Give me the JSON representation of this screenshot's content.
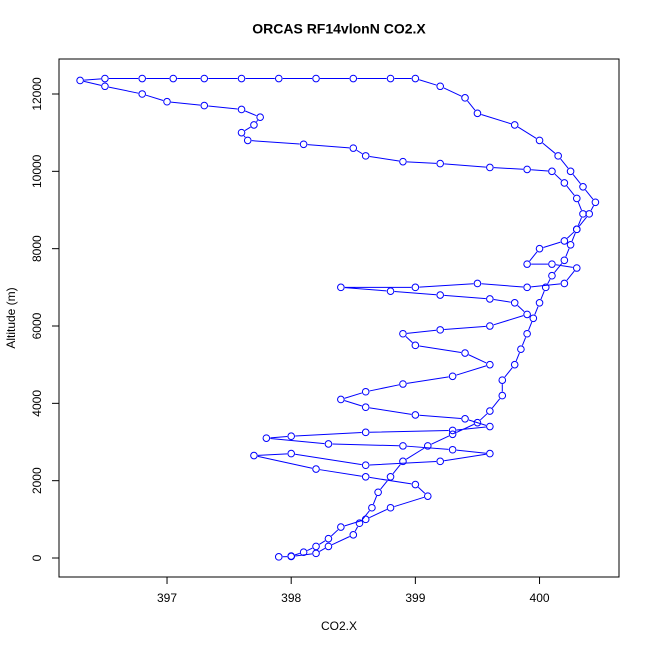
{
  "chart_data": {
    "type": "line",
    "markers": "circle",
    "title": "ORCAS RF14vlonN CO2.X",
    "x_label": "CO2.X",
    "y_label": "Altitude (m)",
    "color": "#0000ff",
    "xlim": [
      396.13,
      400.64
    ],
    "ylim": [
      -491,
      12905
    ],
    "xticks": [
      397,
      398,
      399,
      400
    ],
    "yticks": [
      0,
      2000,
      4000,
      6000,
      8000,
      10000,
      12000
    ],
    "x": [
      397.9,
      398.0,
      398.2,
      398.3,
      398.5,
      398.55,
      398.65,
      398.7,
      398.8,
      398.9,
      399.1,
      399.3,
      399.5,
      399.6,
      399.7,
      399.7,
      399.8,
      399.85,
      399.9,
      399.95,
      400.0,
      400.05,
      400.1,
      400.2,
      400.25,
      400.3,
      400.4,
      400.45,
      400.35,
      400.25,
      400.15,
      400.0,
      399.8,
      399.5,
      399.4,
      399.2,
      399.0,
      398.8,
      398.5,
      398.2,
      397.9,
      397.6,
      397.3,
      397.05,
      396.8,
      396.5,
      396.3,
      396.5,
      396.8,
      397.0,
      397.3,
      397.6,
      397.75,
      397.7,
      397.6,
      397.65,
      398.1,
      398.5,
      398.6,
      398.9,
      399.2,
      399.6,
      399.9,
      400.1,
      400.2,
      400.3,
      400.35,
      400.3,
      400.2,
      400.0,
      399.9,
      400.1,
      400.3,
      400.2,
      399.9,
      399.5,
      399.0,
      398.4,
      398.8,
      399.2,
      399.6,
      399.8,
      399.9,
      399.6,
      399.2,
      398.9,
      399.0,
      399.4,
      399.6,
      399.3,
      398.9,
      398.6,
      398.4,
      398.6,
      399.0,
      399.4,
      399.6,
      399.3,
      398.6,
      398.0,
      397.8,
      398.3,
      398.9,
      399.3,
      399.6,
      399.2,
      398.6,
      398.0,
      397.7,
      398.2,
      398.6,
      399.0,
      399.1,
      398.8,
      398.6,
      398.4,
      398.3,
      398.2,
      398.1,
      398.0
    ],
    "series": [
      {
        "name": "Altitude",
        "values": [
          30,
          40,
          120,
          300,
          600,
          900,
          1300,
          1700,
          2100,
          2500,
          2900,
          3200,
          3500,
          3800,
          4200,
          4600,
          5000,
          5400,
          5800,
          6200,
          6600,
          7000,
          7300,
          7700,
          8100,
          8500,
          8900,
          9200,
          9600,
          10000,
          10400,
          10800,
          11200,
          11500,
          11900,
          12200,
          12400,
          12400,
          12400,
          12400,
          12400,
          12400,
          12400,
          12400,
          12400,
          12400,
          12350,
          12200,
          12000,
          11800,
          11700,
          11600,
          11400,
          11200,
          11000,
          10800,
          10700,
          10600,
          10400,
          10250,
          10200,
          10100,
          10050,
          10000,
          9700,
          9300,
          8900,
          8500,
          8200,
          8000,
          7600,
          7600,
          7500,
          7100,
          7000,
          7100,
          7000,
          7000,
          6900,
          6800,
          6700,
          6600,
          6300,
          6000,
          5900,
          5800,
          5500,
          5300,
          5000,
          4700,
          4500,
          4300,
          4100,
          3900,
          3700,
          3600,
          3400,
          3300,
          3250,
          3150,
          3100,
          2950,
          2900,
          2800,
          2700,
          2500,
          2400,
          2700,
          2650,
          2300,
          2100,
          1900,
          1600,
          1300,
          1000,
          800,
          500,
          300,
          150,
          50
        ]
      }
    ]
  }
}
